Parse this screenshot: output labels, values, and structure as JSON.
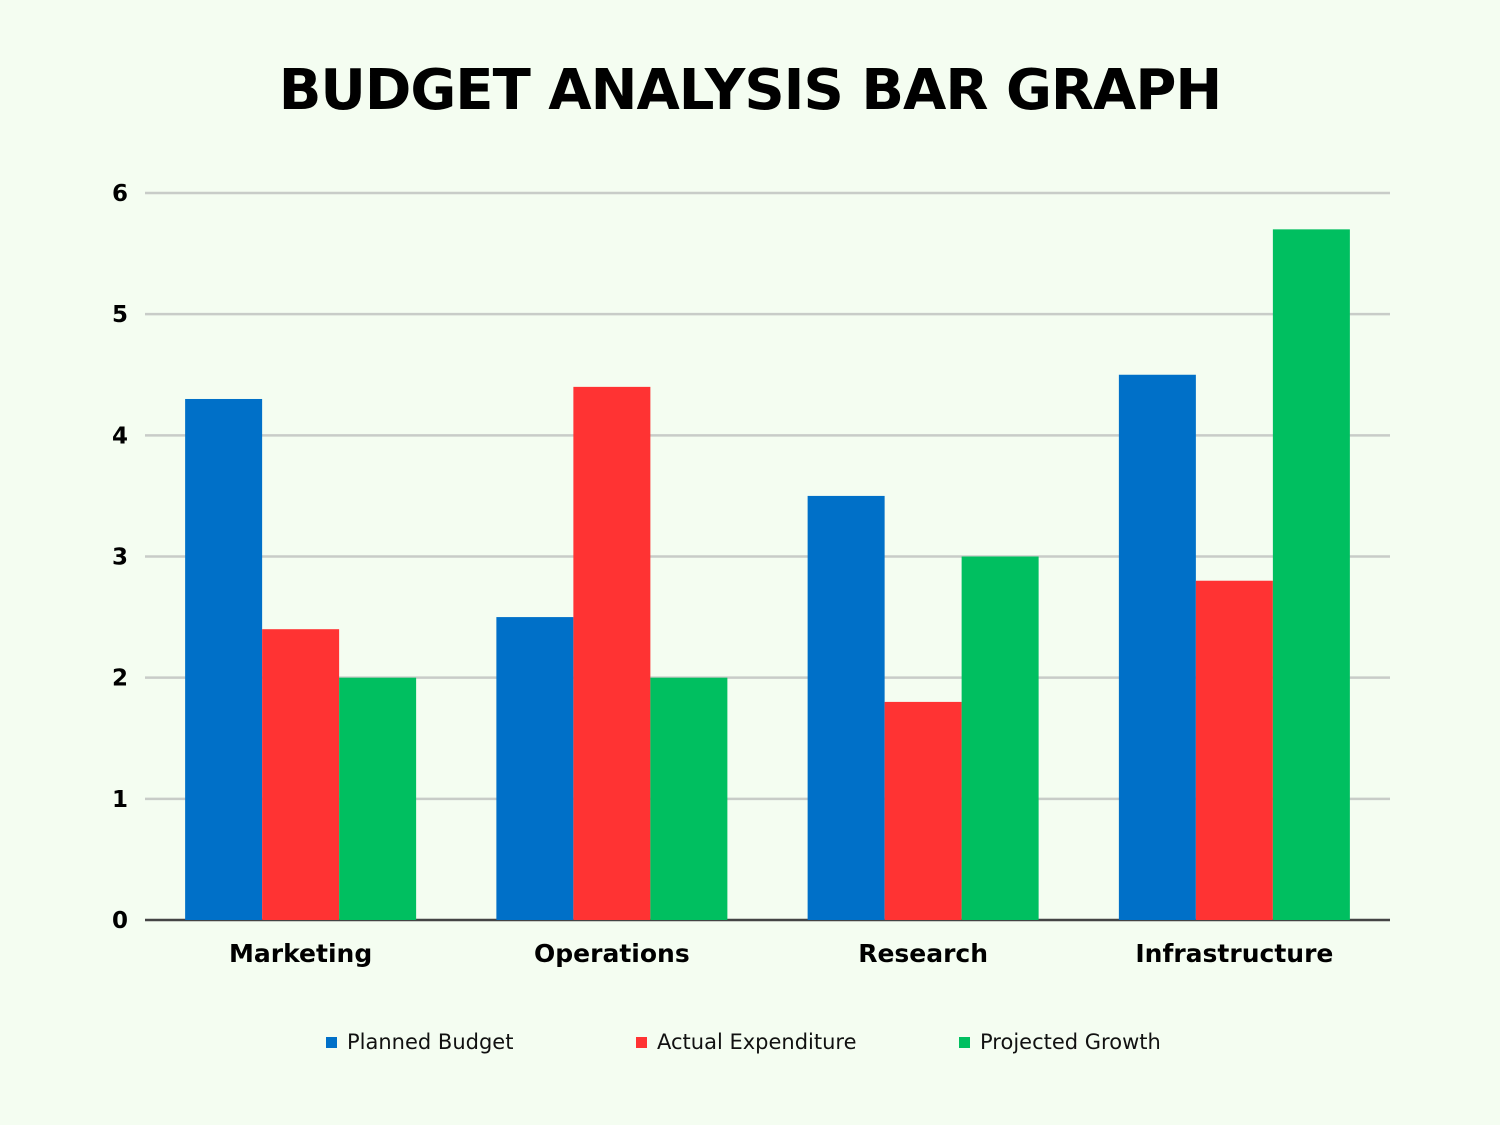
{
  "chart_data": {
    "type": "bar",
    "title": "BUDGET ANALYSIS BAR GRAPH",
    "categories": [
      "Marketing",
      "Operations",
      "Research",
      "Infrastructure"
    ],
    "series": [
      {
        "name": "Planned Budget",
        "color": "#0070C8",
        "values": [
          4.3,
          2.5,
          3.5,
          4.5
        ]
      },
      {
        "name": "Actual Expenditure",
        "color": "#FF3333",
        "values": [
          2.4,
          4.4,
          1.8,
          2.8
        ]
      },
      {
        "name": "Projected Growth",
        "color": "#00BF60",
        "values": [
          2.0,
          2.0,
          3.0,
          5.7
        ]
      }
    ],
    "yticks": [
      "0",
      "1",
      "2",
      "3",
      "4",
      "5",
      "6"
    ],
    "ylim": [
      0,
      6
    ],
    "xlabel": "",
    "ylabel": "",
    "grid": true,
    "legend": "bottom"
  }
}
